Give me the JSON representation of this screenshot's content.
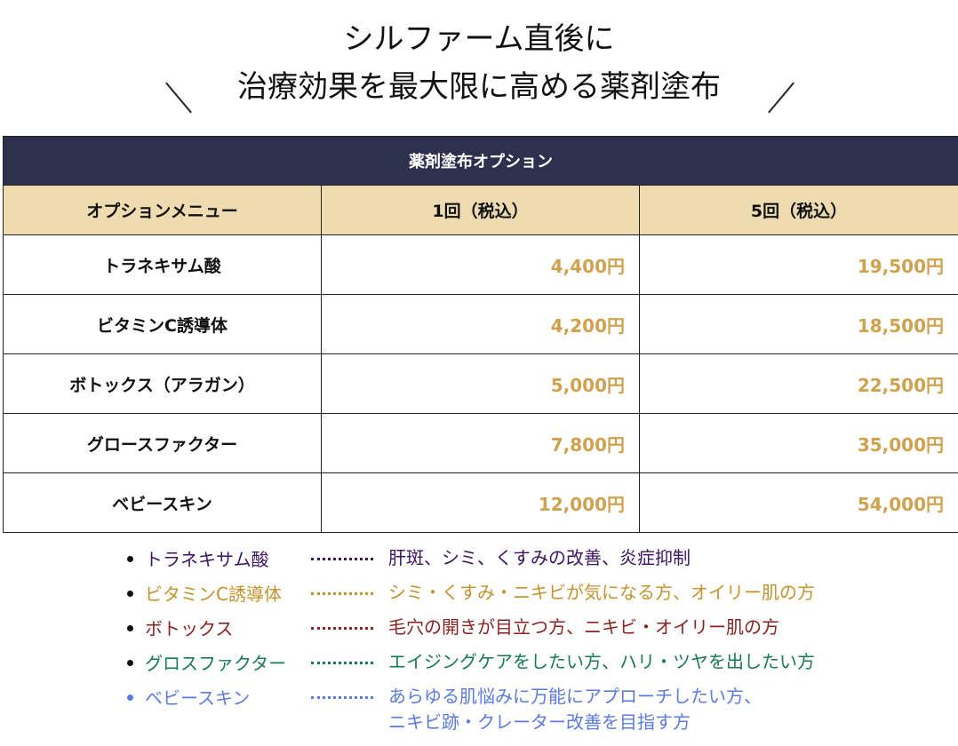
{
  "title": {
    "line1": "シルファーム直後に",
    "line2": "治療効果を最大限に高める薬剤塗布"
  },
  "table": {
    "caption": "薬剤塗布オプション",
    "headers": [
      "オプションメニュー",
      "1回（税込）",
      "5回（税込）"
    ],
    "rows": [
      {
        "name": "トラネキサム酸",
        "once": "4,400円",
        "five": "19,500円"
      },
      {
        "name": "ビタミンC誘導体",
        "once": "4,200円",
        "five": "18,500円"
      },
      {
        "name": "ボトックス（アラガン）",
        "once": "5,000円",
        "five": "22,500円"
      },
      {
        "name": "グロースファクター",
        "once": "7,800円",
        "five": "35,000円"
      },
      {
        "name": "ベビースキン",
        "once": "12,000円",
        "five": "54,000円"
      }
    ]
  },
  "legend": [
    {
      "name": "トラネキサム酸",
      "desc": "肝斑、シミ、くすみの改善、炎症抑制",
      "desc2": "",
      "color": "#3d1466",
      "bullet": "#111111"
    },
    {
      "name": "ビタミンC誘導体",
      "desc": "シミ・くすみ・ニキビが気になる方、オイリー肌の方",
      "desc2": "",
      "color": "#c4932e",
      "bullet": "#111111"
    },
    {
      "name": "ボトックス",
      "desc": "毛穴の開きが目立つ方、ニキビ・オイリー肌の方",
      "desc2": "",
      "color": "#8b2222",
      "bullet": "#111111"
    },
    {
      "name": "グロスファクター",
      "desc": "エイジングケアをしたい方、ハリ・ツヤを出したい方",
      "desc2": "",
      "color": "#177a50",
      "bullet": "#111111"
    },
    {
      "name": "ベビースキン",
      "desc": "あらゆる肌悩みに万能にアプローチしたい方、",
      "desc2": "ニキビ跡・クレーター改善を目指す方",
      "color": "#5b7be0",
      "bullet": "#5b7be0"
    }
  ]
}
